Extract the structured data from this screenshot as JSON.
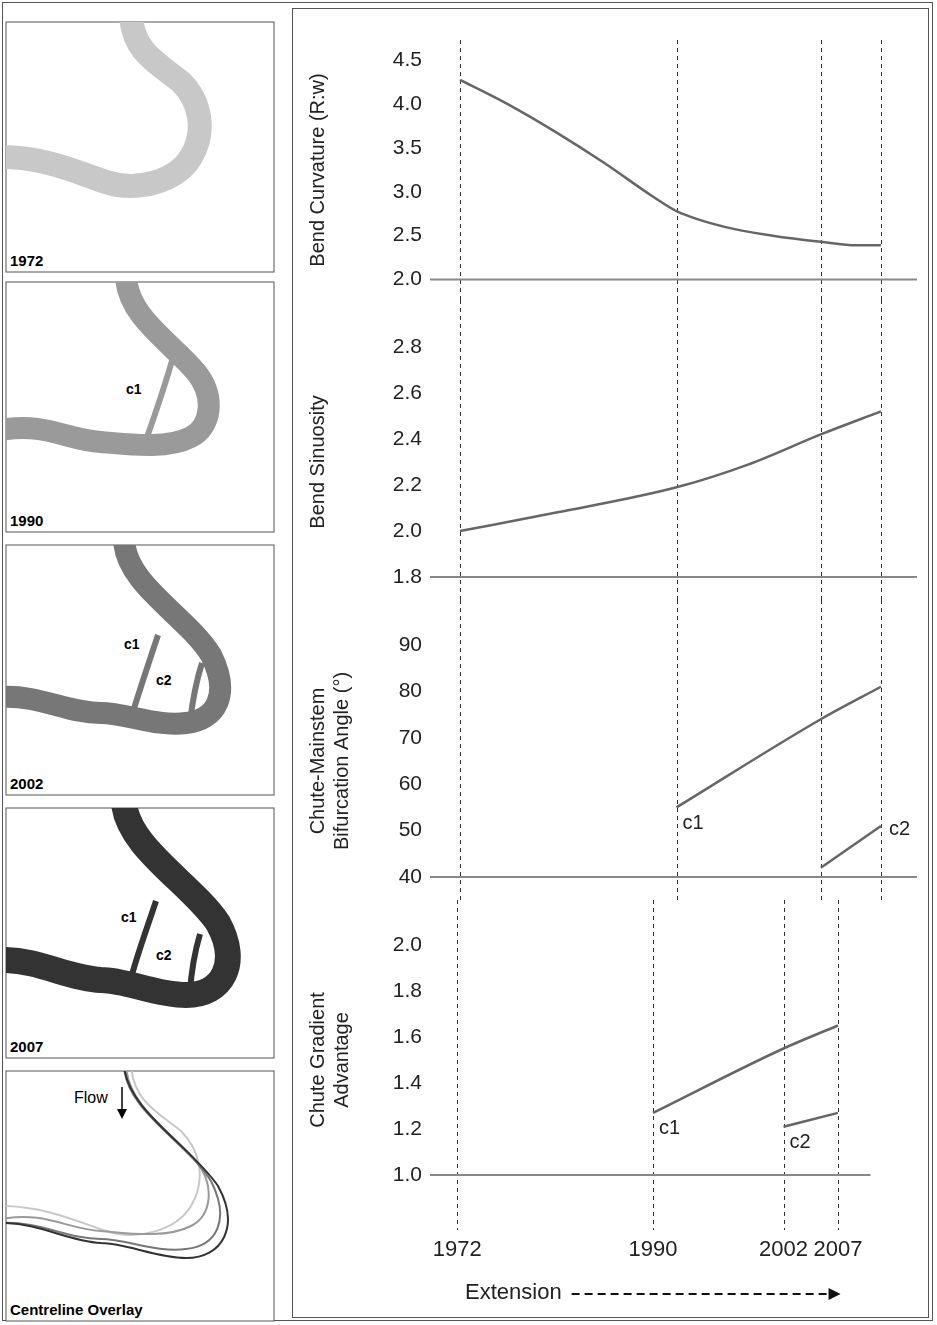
{
  "chart_data": [
    {
      "type": "line",
      "ylabel": "Bend Curvature (R:w)",
      "x": [
        1972,
        1976,
        1980,
        1984,
        1988,
        1990,
        1994,
        1998,
        2002,
        2005,
        2007
      ],
      "values": [
        4.28,
        4.0,
        3.68,
        3.33,
        2.95,
        2.78,
        2.6,
        2.5,
        2.43,
        2.39,
        2.39
      ],
      "color": "#666666",
      "xlim": [
        1969.5,
        2010
      ],
      "xticks": [
        1972,
        1990,
        2002,
        2007
      ],
      "ylim": [
        2,
        4.5
      ],
      "yticks": [
        {
          "value": 2,
          "label": "2.0"
        },
        2.5,
        {
          "value": 3,
          "label": "3.0"
        },
        3.5,
        {
          "value": 4,
          "label": "4.0"
        },
        4.5
      ],
      "grid": true,
      "tick_labels": "y"
    },
    {
      "type": "line",
      "ylabel": "Bend Sinuosity",
      "x": [
        1972,
        1980,
        1990,
        1996,
        2002,
        2007
      ],
      "values": [
        2.0,
        2.08,
        2.19,
        2.29,
        2.42,
        2.52
      ],
      "color": "#666666",
      "xlim": [
        1969.5,
        2010
      ],
      "xticks": [
        1972,
        1990,
        2002,
        2007
      ],
      "ylim": [
        1.8,
        2.8
      ],
      "yticks": [
        1.8,
        {
          "value": 2,
          "label": "2.0"
        },
        2.2,
        2.4,
        2.6,
        2.8
      ],
      "grid": true,
      "tick_labels": "y"
    },
    {
      "type": "line",
      "ylabel": "Chute-Mainstem Bifurcation Angle (°)",
      "series": [
        {
          "name": "c1",
          "color": "#666666",
          "x": [
            1990,
            2002,
            2007
          ],
          "values": [
            55,
            74,
            81
          ]
        },
        {
          "name": "c2",
          "color": "#666666",
          "x": [
            2002,
            2007
          ],
          "values": [
            42,
            51
          ]
        }
      ],
      "xlim": [
        1969.5,
        2010
      ],
      "xticks": [
        1972,
        1990,
        2002,
        2007
      ],
      "ylim": [
        40,
        90
      ],
      "yticks": [
        40,
        50,
        60,
        70,
        80,
        90
      ],
      "grid": true,
      "tick_labels": "y"
    },
    {
      "type": "line",
      "ylabel": "Chute Gradient Advantage",
      "xlabel": "Extension",
      "series": [
        {
          "name": "c1",
          "color": "#666666",
          "x": [
            1990,
            2002,
            2007
          ],
          "values": [
            1.27,
            1.55,
            1.65
          ]
        },
        {
          "name": "c2",
          "color": "#666666",
          "x": [
            2002,
            2007
          ],
          "values": [
            1.21,
            1.27
          ]
        }
      ],
      "xlim": [
        1969.5,
        2010
      ],
      "xticks": [
        1972,
        1990,
        2002,
        2007
      ],
      "ylim": [
        1,
        2
      ],
      "yticks": [
        {
          "value": 1,
          "label": "1.0"
        },
        1.2,
        1.4,
        1.6,
        1.8,
        {
          "value": 2,
          "label": "2.0"
        }
      ],
      "grid": true
    }
  ],
  "map_panels": [
    {
      "label": "1972",
      "chutes": []
    },
    {
      "label": "1990",
      "chutes": [
        "c1"
      ]
    },
    {
      "label": "2002",
      "chutes": [
        "c1",
        "c2"
      ]
    },
    {
      "label": "2007",
      "chutes": [
        "c1",
        "c2"
      ]
    },
    {
      "label": "Centreline Overlay",
      "flow": "Flow"
    }
  ]
}
